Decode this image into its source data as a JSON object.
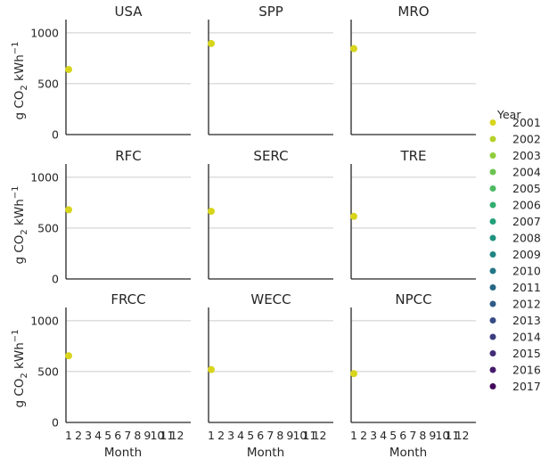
{
  "chart_data": {
    "type": "scatter",
    "xlabel": "Month",
    "ylabel": "g CO",
    "ylabel_sub": "2",
    "ylabel_unit": "kWh",
    "ylabel_sup": "−1",
    "ylim": [
      0,
      1060
    ],
    "yticks": [
      0,
      500,
      1000
    ],
    "xticks": [
      "1",
      "2",
      "3",
      "4",
      "5",
      "6",
      "7",
      "8",
      "9",
      "10",
      "11",
      "12"
    ],
    "grid": "horizontal",
    "legend": {
      "title": "Year",
      "placement": "right",
      "entries": [
        {
          "label": "2001",
          "color": "#d8d51c"
        },
        {
          "label": "2002",
          "color": "#b5d12a"
        },
        {
          "label": "2003",
          "color": "#8fcc3b"
        },
        {
          "label": "2004",
          "color": "#6bc44f"
        },
        {
          "label": "2005",
          "color": "#4cba61"
        },
        {
          "label": "2006",
          "color": "#32ad6f"
        },
        {
          "label": "2007",
          "color": "#23a07a"
        },
        {
          "label": "2008",
          "color": "#1f927f"
        },
        {
          "label": "2009",
          "color": "#208482"
        },
        {
          "label": "2010",
          "color": "#237685"
        },
        {
          "label": "2011",
          "color": "#286886"
        },
        {
          "label": "2012",
          "color": "#2e5a87"
        },
        {
          "label": "2013",
          "color": "#354b85"
        },
        {
          "label": "2014",
          "color": "#3b3c80"
        },
        {
          "label": "2015",
          "color": "#412c77"
        },
        {
          "label": "2016",
          "color": "#461b6b"
        },
        {
          "label": "2017",
          "color": "#440a5c"
        }
      ]
    },
    "panels": [
      {
        "name": "USA",
        "points": [
          {
            "x": 1,
            "y": 640,
            "year": "2001"
          }
        ]
      },
      {
        "name": "SPP",
        "points": [
          {
            "x": 1,
            "y": 895,
            "year": "2001"
          }
        ]
      },
      {
        "name": "MRO",
        "points": [
          {
            "x": 1,
            "y": 845,
            "year": "2001"
          }
        ]
      },
      {
        "name": "RFC",
        "points": [
          {
            "x": 1,
            "y": 680,
            "year": "2001"
          }
        ]
      },
      {
        "name": "SERC",
        "points": [
          {
            "x": 1,
            "y": 665,
            "year": "2001"
          }
        ]
      },
      {
        "name": "TRE",
        "points": [
          {
            "x": 1,
            "y": 615,
            "year": "2001"
          }
        ]
      },
      {
        "name": "FRCC",
        "points": [
          {
            "x": 1,
            "y": 655,
            "year": "2001"
          }
        ]
      },
      {
        "name": "WECC",
        "points": [
          {
            "x": 1,
            "y": 520,
            "year": "2001"
          }
        ]
      },
      {
        "name": "NPCC",
        "points": [
          {
            "x": 1,
            "y": 480,
            "year": "2001"
          }
        ]
      }
    ]
  }
}
